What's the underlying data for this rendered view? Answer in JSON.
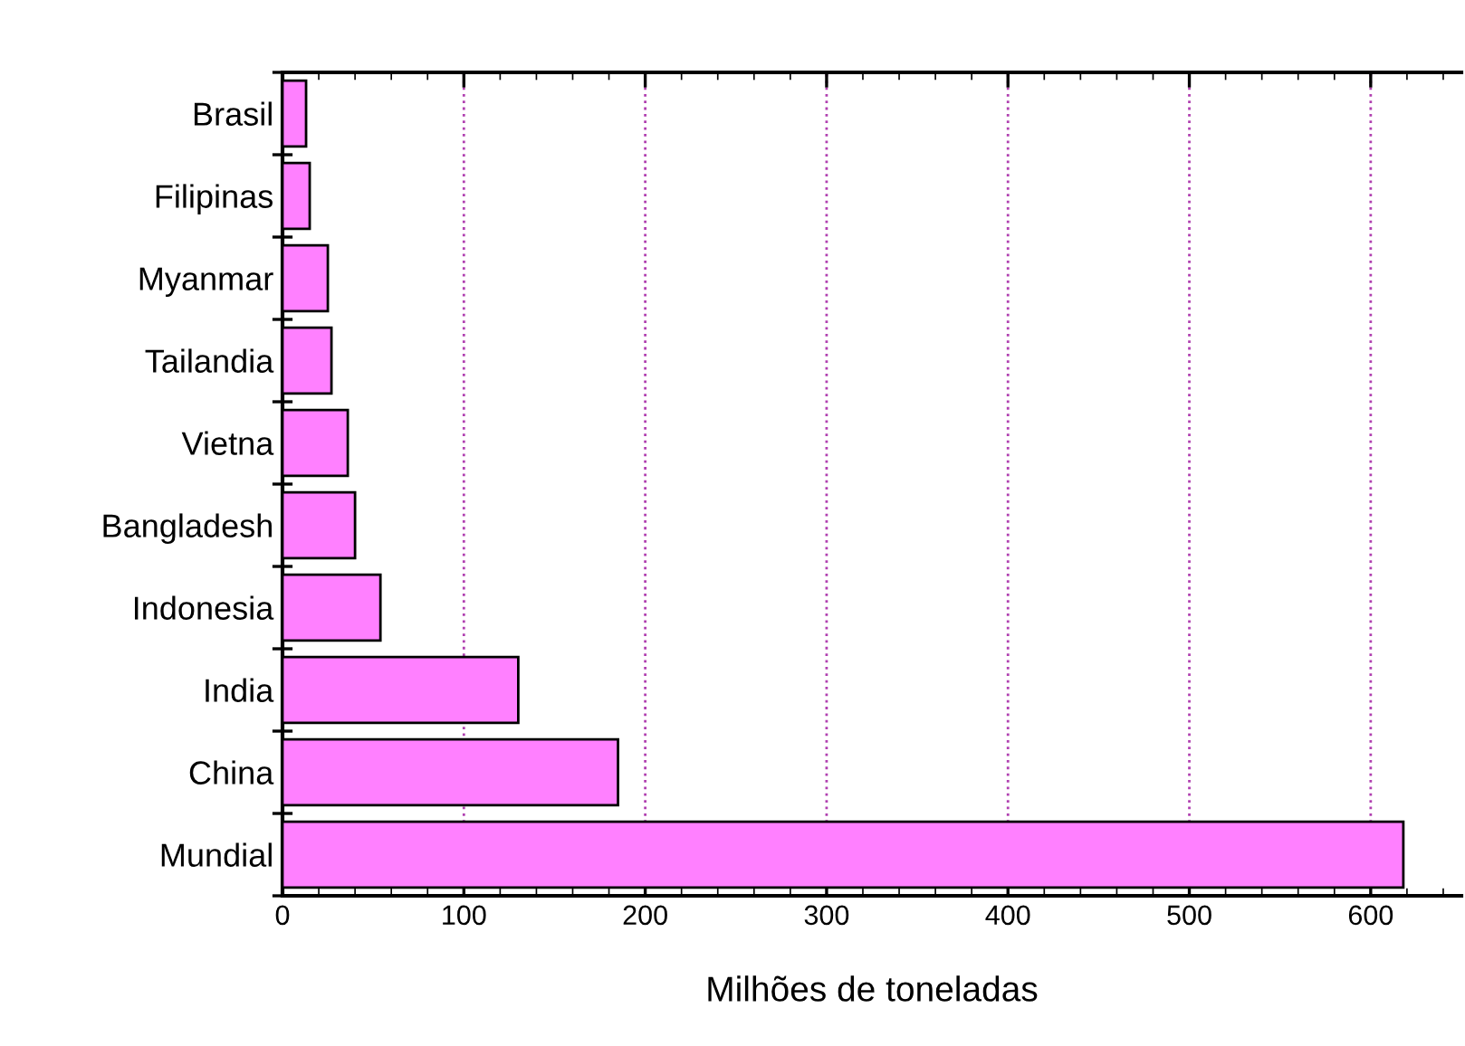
{
  "chart_data": {
    "type": "bar",
    "orientation": "horizontal",
    "xlabel": "Milhões de toneladas",
    "categories": [
      "Brasil",
      "Filipinas",
      "Myanmar",
      "Tailandia",
      "Vietna",
      "Bangladesh",
      "Indonesia",
      "India",
      "China",
      "Mundial"
    ],
    "values": [
      13,
      15,
      25,
      27,
      36,
      40,
      54,
      130,
      185,
      618
    ],
    "color": "#ff80ff",
    "xlim": [
      0,
      650
    ],
    "xticks": [
      0,
      100,
      200,
      300,
      400,
      500,
      600
    ],
    "grid": "x"
  }
}
